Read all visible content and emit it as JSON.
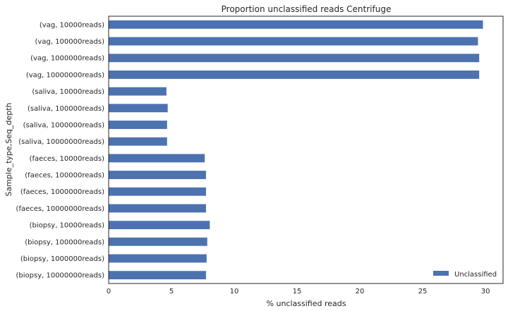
{
  "chart_data": {
    "type": "bar",
    "orientation": "horizontal",
    "title": "Proportion unclassified reads Centrifuge",
    "xlabel": "% unclassified reads",
    "ylabel": "Sample_type,Seq_depth",
    "categories": [
      "(vag, 10000reads)",
      "(vag, 100000reads)",
      "(vag, 1000000reads)",
      "(vag, 10000000reads)",
      "(saliva, 10000reads)",
      "(saliva, 100000reads)",
      "(saliva, 1000000reads)",
      "(saliva, 10000000reads)",
      "(faeces, 10000reads)",
      "(faeces, 100000reads)",
      "(faeces, 1000000reads)",
      "(faeces, 10000000reads)",
      "(biopsy, 10000reads)",
      "(biopsy, 100000reads)",
      "(biopsy, 1000000reads)",
      "(biopsy, 10000000reads)"
    ],
    "series": [
      {
        "name": "Unclassified",
        "values": [
          29.8,
          29.4,
          29.5,
          29.5,
          4.6,
          4.7,
          4.65,
          4.65,
          7.65,
          7.75,
          7.75,
          7.75,
          8.05,
          7.85,
          7.8,
          7.75
        ]
      }
    ],
    "xlim": [
      0,
      31.4
    ],
    "xticks": [
      0,
      5,
      10,
      15,
      20,
      25,
      30
    ],
    "grid": false,
    "legend": "lower-right",
    "color": "#4c72b0"
  }
}
